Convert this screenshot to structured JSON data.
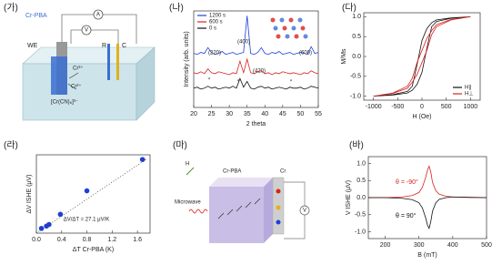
{
  "chart_data": [
    {
      "type": "line",
      "panel_label": "(나)",
      "xlabel": "2 theta",
      "ylabel": "Intensity (arb. units)",
      "x": [
        20,
        21,
        22,
        23,
        24,
        25,
        26,
        27,
        28,
        29,
        30,
        31,
        32,
        33,
        34,
        35,
        36,
        37,
        38,
        39,
        40,
        41,
        42,
        43,
        44,
        45,
        46,
        47,
        48,
        49,
        50,
        51,
        52,
        53,
        54,
        55
      ],
      "xlim": [
        20,
        55
      ],
      "xticks": [
        20,
        25,
        30,
        35,
        40,
        45,
        50,
        55
      ],
      "ylim": [
        0,
        100
      ],
      "legend": "upper left",
      "series": [
        {
          "name": "1200 s",
          "color": "#1f3fd8",
          "values": [
            56,
            55,
            57,
            56,
            62,
            57,
            55,
            56,
            58,
            55,
            56,
            57,
            55,
            56,
            57,
            95,
            56,
            55,
            57,
            62,
            56,
            55,
            57,
            56,
            58,
            55,
            56,
            57,
            55,
            56,
            57,
            56,
            55,
            63,
            56,
            57
          ]
        },
        {
          "name": "600 s",
          "color": "#d8231f",
          "values": [
            36,
            35,
            37,
            35,
            40,
            36,
            35,
            37,
            36,
            35,
            34,
            36,
            35,
            48,
            36,
            50,
            36,
            35,
            37,
            38,
            35,
            36,
            34,
            36,
            35,
            37,
            36,
            35,
            36,
            35,
            34,
            36,
            35,
            38,
            36,
            35
          ]
        },
        {
          "name": "0 s",
          "color": "#111111",
          "values": [
            20,
            21,
            19,
            20,
            22,
            20,
            21,
            19,
            20,
            21,
            20,
            22,
            20,
            30,
            21,
            27,
            20,
            19,
            21,
            22,
            20,
            21,
            19,
            20,
            21,
            20,
            19,
            21,
            20,
            20,
            21,
            19,
            20,
            22,
            21,
            20
          ]
        }
      ],
      "annotations": [
        "(220)",
        "(400)",
        "(420)",
        "(600)",
        "*",
        "*",
        "*"
      ]
    },
    {
      "type": "line",
      "panel_label": "(다)",
      "xlabel": "H (Oe)",
      "ylabel": "M/Ms",
      "xlim": [
        -1200,
        1200
      ],
      "xticks": [
        -1000,
        -500,
        0,
        500,
        1000
      ],
      "ylim": [
        -1.1,
        1.1
      ],
      "yticks": [
        {
          "value": -1,
          "label": "-1.0"
        },
        {
          "value": -0.5,
          "label": "-0.5"
        },
        {
          "value": 0,
          "label": "0.0"
        },
        {
          "value": 0.5,
          "label": "0.5"
        },
        {
          "value": 1,
          "label": "1.0"
        }
      ],
      "legend": "lower right",
      "series": [
        {
          "name": "H∥",
          "color": "#111111",
          "x": [
            -1000,
            -600,
            -300,
            -200,
            -100,
            0,
            100,
            200,
            300,
            600,
            1000,
            600,
            300,
            200,
            100,
            0,
            -100,
            -200,
            -300,
            -600,
            -1000
          ],
          "values": [
            -1,
            -0.97,
            -0.92,
            -0.85,
            -0.7,
            -0.4,
            0.2,
            0.75,
            0.88,
            0.96,
            1,
            0.97,
            0.92,
            0.85,
            0.7,
            0.4,
            -0.2,
            -0.75,
            -0.88,
            -0.96,
            -1
          ]
        },
        {
          "name": "H⊥",
          "color": "#d8231f",
          "x": [
            -1000,
            -600,
            -300,
            -200,
            -100,
            0,
            100,
            200,
            300,
            600,
            1000,
            600,
            300,
            200,
            100,
            0,
            -100,
            -200,
            -300,
            -600,
            -1000
          ],
          "values": [
            -1,
            -0.93,
            -0.8,
            -0.65,
            -0.45,
            -0.15,
            0.15,
            0.55,
            0.75,
            0.92,
            1,
            0.93,
            0.8,
            0.65,
            0.45,
            0.15,
            -0.15,
            -0.55,
            -0.75,
            -0.92,
            -1
          ]
        }
      ]
    },
    {
      "type": "scatter",
      "panel_label": "(라)",
      "xlabel": "ΔT Cr-PBA (K)",
      "ylabel": "ΔV ISHE (μV)",
      "xlim": [
        0,
        1.8
      ],
      "xticks": [
        {
          "value": 0,
          "label": "0.0"
        },
        0.4,
        0.8,
        1.2,
        1.6
      ],
      "ylim": [
        0,
        50
      ],
      "series": [
        {
          "name": "ΔV",
          "color": "#1f3fd8",
          "x": [
            0.08,
            0.16,
            0.2,
            0.38,
            0.8,
            1.68
          ],
          "values": [
            3,
            4.5,
            5.5,
            12,
            27,
            47
          ]
        }
      ],
      "fit": {
        "x": [
          0,
          1.75
        ],
        "values": [
          0,
          47.4
        ]
      },
      "annotation": "ΔV/ΔT = 27.1 μV/K"
    },
    {
      "type": "line",
      "panel_label": "(바)",
      "xlabel": "B (mT)",
      "ylabel": "V ISHE (μV)",
      "x": [
        150,
        200,
        250,
        280,
        300,
        310,
        320,
        325,
        330,
        335,
        340,
        350,
        360,
        380,
        400,
        450,
        500
      ],
      "xlim": [
        150,
        500
      ],
      "xticks": [
        200,
        300,
        400,
        500
      ],
      "ylim": [
        -1.2,
        1.2
      ],
      "yticks": [
        {
          "value": -1,
          "label": "-1.0"
        },
        {
          "value": -0.5,
          "label": "-0.5"
        },
        {
          "value": 0,
          "label": "0.0"
        },
        {
          "value": 0.5,
          "label": "0.5"
        },
        {
          "value": 1,
          "label": "1.0"
        }
      ],
      "legend": "labels",
      "series": [
        {
          "name": "θ = -90°",
          "color": "#d8231f",
          "values": [
            0,
            0,
            0.02,
            0.06,
            0.15,
            0.3,
            0.6,
            0.8,
            0.92,
            0.75,
            0.45,
            0.2,
            0.1,
            0.04,
            0.02,
            0,
            0
          ]
        },
        {
          "name": "θ = 90°",
          "color": "#111111",
          "values": [
            0,
            0,
            -0.02,
            -0.06,
            -0.15,
            -0.3,
            -0.6,
            -0.8,
            -0.9,
            -0.7,
            -0.4,
            -0.15,
            -0.05,
            0,
            0.02,
            0.01,
            0
          ]
        }
      ]
    }
  ],
  "diagrams": [
    {
      "panel_label": "(가)",
      "labels": [
        "Cr-PBA",
        "A",
        "V",
        "WE",
        "R",
        "C",
        "Cr³⁺",
        "Cr²⁺",
        "[Cr(CN)₆]³⁻"
      ]
    },
    {
      "panel_label": "(마)",
      "labels": [
        "H",
        "Cr-PBA",
        "Cr",
        "Microwave",
        "V"
      ]
    }
  ]
}
